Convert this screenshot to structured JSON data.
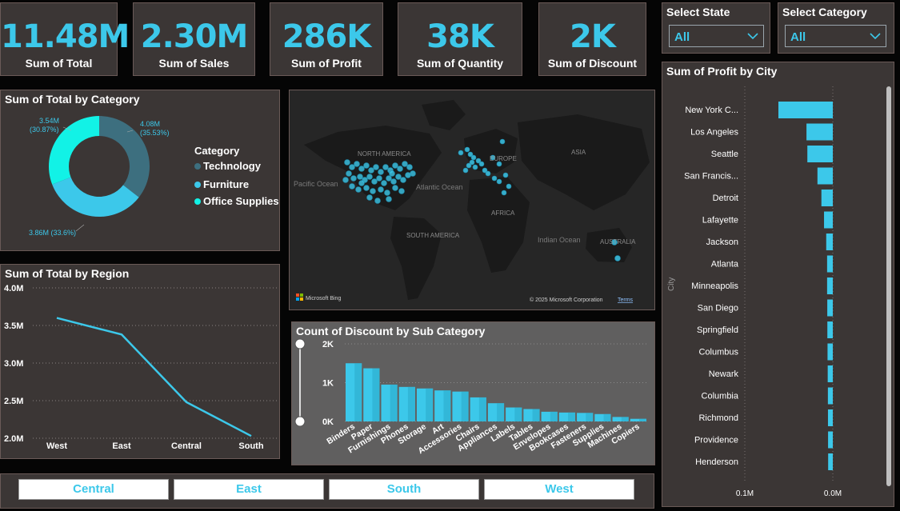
{
  "kpis": [
    {
      "value": "11.48M",
      "label": "Sum of Total"
    },
    {
      "value": "2.30M",
      "label": "Sum of Sales"
    },
    {
      "value": "286K",
      "label": "Sum of Profit"
    },
    {
      "value": "38K",
      "label": "Sum of Quantity"
    },
    {
      "value": "2K",
      "label": "Sum of Discount"
    }
  ],
  "slicers": {
    "state": {
      "title": "Select State",
      "value": "All"
    },
    "category": {
      "title": "Select Category",
      "value": "All"
    }
  },
  "donut": {
    "title": "Sum of Total by Category",
    "legend_title": "Category",
    "slices": [
      {
        "name": "Technology",
        "value": 4.08,
        "label_value": "4.08M",
        "label_pct": "(35.53%)",
        "color": "#3d6f7f"
      },
      {
        "name": "Furniture",
        "value": 3.86,
        "label_value": "3.86M (33.6%)",
        "label_pct": "",
        "color": "#3cc8ea"
      },
      {
        "name": "Office Supplies",
        "value": 3.54,
        "label_value": "3.54M",
        "label_pct": "(30.87%)",
        "color": "#12f2e6"
      }
    ]
  },
  "map": {
    "labels": [
      "NORTH AMERICA",
      "EUROPE",
      "ASIA",
      "AFRICA",
      "SOUTH AMERICA",
      "AUSTRALIA",
      "Pacific Ocean",
      "Atlantic Ocean",
      "Indian Ocean"
    ],
    "bing": "Microsoft Bing",
    "copyright": "© 2025 Microsoft Corporation",
    "terms": "Terms"
  },
  "region_chart": {
    "title": "Sum of Total by Region",
    "chart_data": {
      "type": "line",
      "categories": [
        "West",
        "East",
        "Central",
        "South"
      ],
      "values": [
        3.6,
        3.38,
        2.48,
        2.03
      ],
      "yticks": [
        "4.0M",
        "3.5M",
        "3.0M",
        "2.5M",
        "2.0M"
      ],
      "ylim": [
        2.0,
        4.0
      ],
      "color": "#3cc8ea"
    }
  },
  "subcat_chart": {
    "title": "Count of Discount by Sub Category",
    "chart_data": {
      "type": "bar",
      "categories": [
        "Binders",
        "Paper",
        "Furnishings",
        "Phones",
        "Storage",
        "Art",
        "Accessories",
        "Chairs",
        "Appliances",
        "Labels",
        "Tables",
        "Envelopes",
        "Bookcases",
        "Fasteners",
        "Supplies",
        "Machines",
        "Copiers"
      ],
      "values": [
        1500,
        1370,
        950,
        890,
        850,
        800,
        770,
        620,
        470,
        360,
        320,
        250,
        230,
        220,
        190,
        115,
        68
      ],
      "yticks": [
        "2K",
        "1K",
        "0K"
      ],
      "ylim": [
        0,
        2000
      ],
      "color": "#3cc8ea"
    }
  },
  "city_chart": {
    "title": "Sum of Profit by City",
    "axis_label": "City",
    "chart_data": {
      "type": "bar",
      "categories": [
        "New York C...",
        "Los Angeles",
        "Seattle",
        "San Francis...",
        "Detroit",
        "Lafayette",
        "Jackson",
        "Atlanta",
        "Minneapolis",
        "San Diego",
        "Springfield",
        "Columbus",
        "Newark",
        "Columbia",
        "Richmond",
        "Providence",
        "Henderson"
      ],
      "values": [
        62000,
        30000,
        29000,
        17500,
        13000,
        10000,
        7500,
        6500,
        6500,
        6300,
        6200,
        6000,
        5800,
        5600,
        5500,
        5400,
        5300
      ],
      "xticks": [
        "0.1M",
        "0.0M"
      ],
      "color": "#3cc8ea"
    }
  },
  "region_chips": [
    "Central",
    "East",
    "South",
    "West"
  ]
}
